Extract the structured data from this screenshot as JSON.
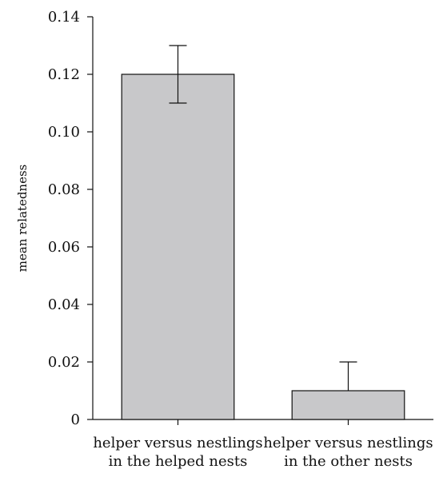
{
  "chart_data": {
    "type": "bar",
    "categories": [
      "helper versus nestlings\nin the helped nests",
      "helper versus nestlings\nin the other nests"
    ],
    "series": [
      {
        "values": [
          0.12,
          0.01
        ],
        "error_upper": [
          0.13,
          0.02
        ],
        "error_lower": [
          0.11,
          0.01
        ]
      }
    ],
    "title": "",
    "xlabel": "",
    "ylabel": "mean relatedness",
    "ylim": [
      0,
      0.14
    ],
    "y_ticks": [
      0,
      0.02,
      0.04,
      0.06,
      0.08,
      0.1,
      0.12,
      0.14
    ],
    "y_tick_labels": [
      "0",
      "0.02",
      "0.04",
      "0.06",
      "0.08",
      "0.10",
      "0.12",
      "0.14"
    ],
    "grid": false,
    "legend": "none",
    "colors": {
      "bar_fill": "#c8c8ca",
      "bar_stroke": "#111111",
      "axis": "#111111"
    }
  }
}
